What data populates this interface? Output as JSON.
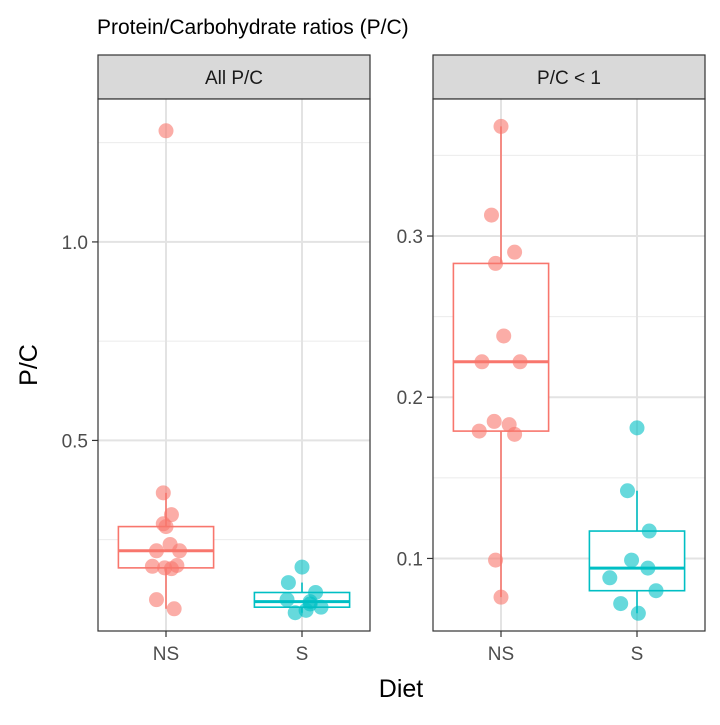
{
  "chart_data": {
    "type": "scatter",
    "title": "Protein/Carbohydrate ratios (P/C)",
    "xlabel": "Diet",
    "ylabel": "P/C",
    "categories": [
      "NS",
      "S"
    ],
    "colors": {
      "NS": "#F8766D",
      "S": "#00BFC4"
    },
    "grid": true,
    "legend": "none",
    "panels": [
      {
        "name": "All P/C",
        "ylim": [
          0.02,
          1.36
        ],
        "yticks": [
          0.5,
          1.0
        ],
        "ytick_labels": [
          "0.5",
          "1.0"
        ],
        "boxes": {
          "NS": {
            "q1": 0.179,
            "median": 0.222,
            "q3": 0.283,
            "whisker_low": 0.076,
            "whisker_high": 0.368
          },
          "S": {
            "q1": 0.08,
            "median": 0.094,
            "q3": 0.117,
            "whisker_low": 0.066,
            "whisker_high": 0.142
          }
        },
        "points": {
          "NS": {
            "x_jitter": [
              0.0,
              -0.02,
              0.04,
              -0.02,
              0.0,
              0.03,
              -0.07,
              0.1,
              0.08,
              -0.1,
              -0.01,
              0.04,
              -0.07,
              0.06
            ],
            "y": [
              1.28,
              0.368,
              0.313,
              0.29,
              0.283,
              0.238,
              0.222,
              0.222,
              0.185,
              0.183,
              0.179,
              0.177,
              0.099,
              0.076
            ]
          },
          "S": {
            "x_jitter": [
              0.0,
              -0.1,
              -0.11,
              0.1,
              0.06,
              0.06,
              0.03,
              -0.05,
              0.14
            ],
            "y": [
              0.181,
              0.142,
              0.099,
              0.117,
              0.094,
              0.088,
              0.072,
              0.066,
              0.08
            ]
          }
        }
      },
      {
        "name": "P/C < 1",
        "ylim": [
          0.055,
          0.385
        ],
        "yticks": [
          0.1,
          0.2,
          0.3
        ],
        "ytick_labels": [
          "0.1",
          "0.2",
          "0.3"
        ],
        "boxes": {
          "NS": {
            "q1": 0.179,
            "median": 0.222,
            "q3": 0.283,
            "whisker_low": 0.076,
            "whisker_high": 0.368
          },
          "S": {
            "q1": 0.08,
            "median": 0.094,
            "q3": 0.117,
            "whisker_low": 0.066,
            "whisker_high": 0.142
          }
        },
        "points": {
          "NS": {
            "x_jitter": [
              0.0,
              -0.07,
              0.1,
              -0.04,
              0.02,
              -0.14,
              0.14,
              -0.05,
              0.06,
              -0.16,
              0.1,
              -0.04,
              0.0
            ],
            "y": [
              0.368,
              0.313,
              0.29,
              0.283,
              0.238,
              0.222,
              0.222,
              0.185,
              0.183,
              0.179,
              0.177,
              0.099,
              0.076
            ]
          },
          "S": {
            "x_jitter": [
              0.0,
              -0.07,
              -0.04,
              0.09,
              -0.2,
              0.08,
              0.14,
              -0.12,
              0.01
            ],
            "y": [
              0.181,
              0.142,
              0.099,
              0.117,
              0.088,
              0.094,
              0.08,
              0.072,
              0.066
            ]
          }
        }
      }
    ]
  }
}
